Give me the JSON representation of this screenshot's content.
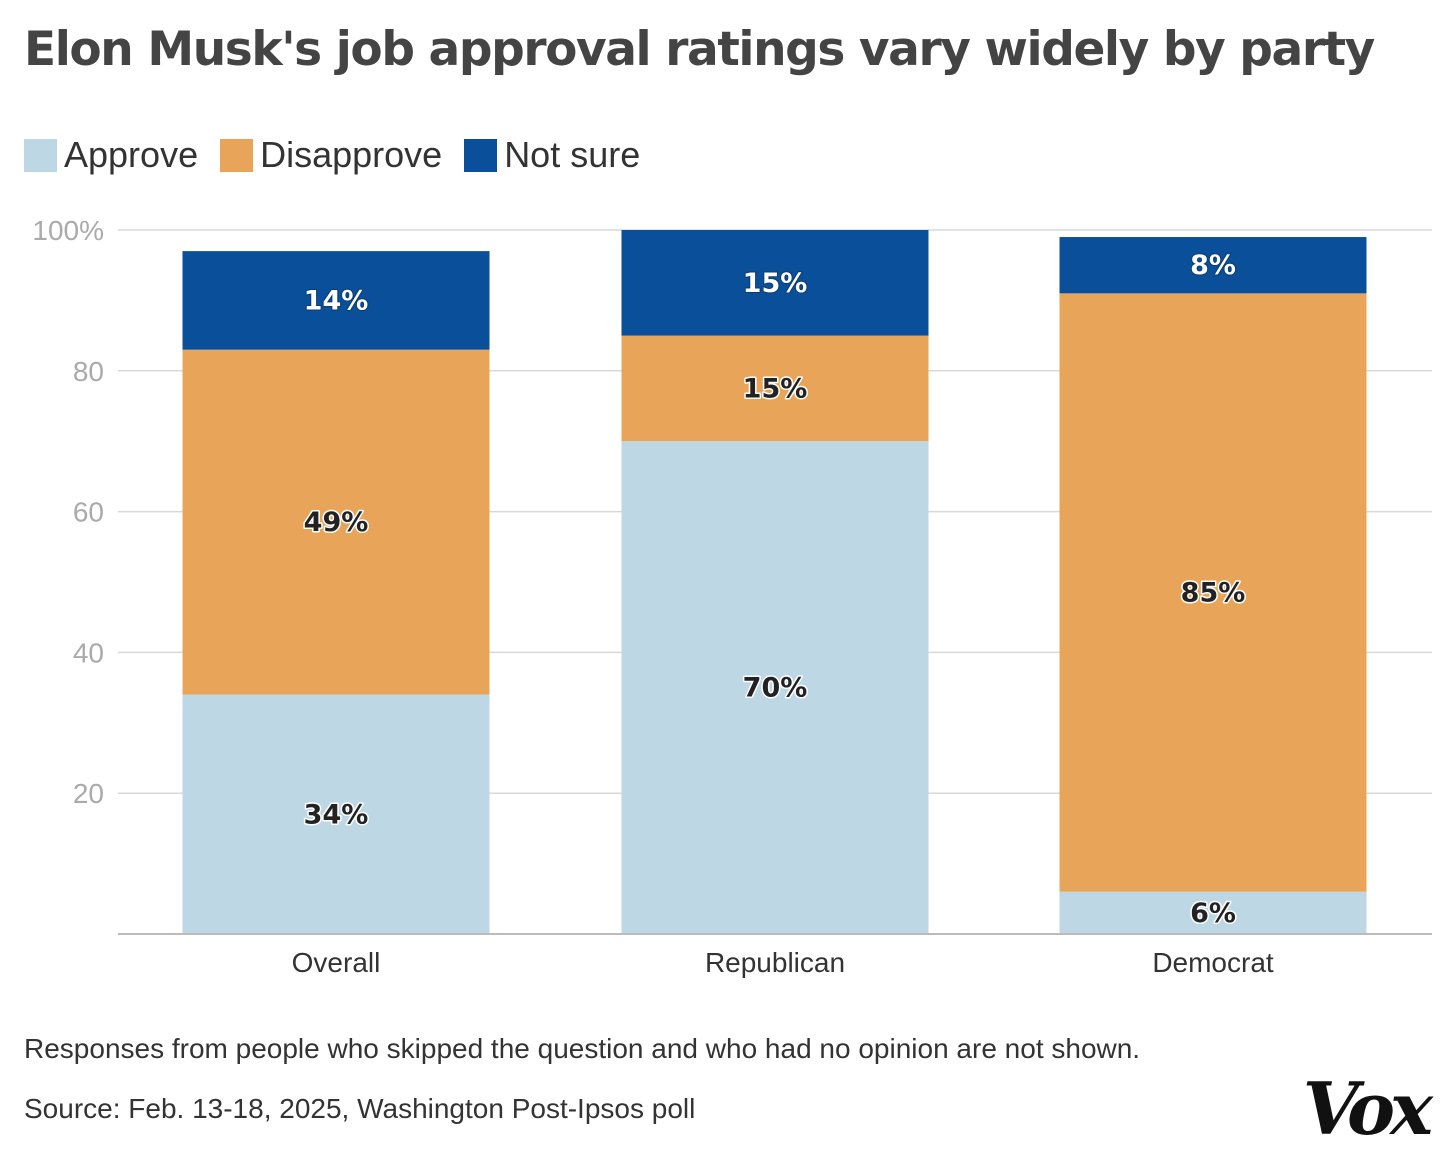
{
  "chart_data": {
    "type": "bar",
    "stacked": true,
    "title": "Elon Musk's job approval ratings vary widely by party",
    "categories": [
      "Overall",
      "Republican",
      "Democrat"
    ],
    "series": [
      {
        "name": "Approve",
        "color": "#bed7e5",
        "values": [
          34,
          70,
          6
        ]
      },
      {
        "name": "Disapprove",
        "color": "#e8a559",
        "values": [
          49,
          15,
          85
        ]
      },
      {
        "name": "Not sure",
        "color": "#0a4f99",
        "values": [
          14,
          15,
          8
        ]
      }
    ],
    "yticks": [
      {
        "value": 100,
        "label": "100%"
      },
      {
        "value": 80,
        "label": "80"
      },
      {
        "value": 60,
        "label": "60"
      },
      {
        "value": 40,
        "label": "40"
      },
      {
        "value": 20,
        "label": "20"
      }
    ],
    "ylim": [
      0,
      100
    ],
    "xlabel": "",
    "ylabel": "",
    "legend_position": "top-left"
  },
  "legend": {
    "approve": "Approve",
    "disapprove": "Disapprove",
    "not_sure": "Not sure"
  },
  "footnote": "Responses from people who skipped the question and who had no opinion are not shown.",
  "source": "Source: Feb. 13-18, 2025, Washington Post-Ipsos poll",
  "brand": "Vox",
  "colors": {
    "approve": "#bed7e5",
    "disapprove": "#e8a559",
    "not_sure": "#0a4f99",
    "grid": "#d9d9d9",
    "tick_label": "#aaaaaa"
  }
}
